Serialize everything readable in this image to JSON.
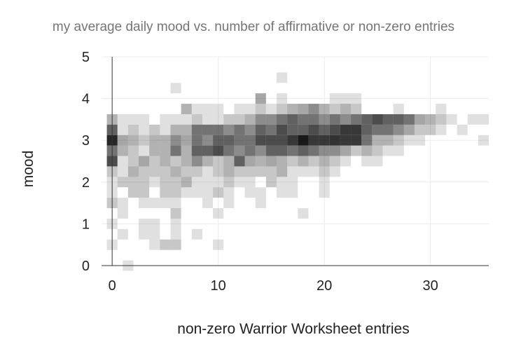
{
  "chart_data": {
    "type": "heatmap",
    "title": "my average daily mood vs. number of affirmative or non-zero entries",
    "xlabel": "non-zero Warrior Worksheet entries",
    "ylabel": "mood",
    "xlim": [
      -1,
      35.5
    ],
    "ylim": [
      0,
      5
    ],
    "x_ticks": [
      0,
      10,
      20,
      30
    ],
    "y_ticks": [
      0,
      1,
      2,
      3,
      4,
      5
    ],
    "bin_width": 1,
    "bin_height": 0.25,
    "grid": true,
    "legend": "none",
    "color": "#000000",
    "cells_columns": [
      "x",
      "y",
      "intensity"
    ],
    "cells": [
      [
        1.5,
        0,
        0.12
      ],
      [
        0,
        0.5,
        0.12
      ],
      [
        4,
        0.5,
        0.12
      ],
      [
        5,
        0.5,
        0.22
      ],
      [
        6,
        0.5,
        0.22
      ],
      [
        10,
        0.5,
        0.12
      ],
      [
        1,
        0.75,
        0.12
      ],
      [
        3,
        0.75,
        0.12
      ],
      [
        4,
        0.75,
        0.12
      ],
      [
        6,
        0.75,
        0.12
      ],
      [
        8,
        0.75,
        0.12
      ],
      [
        0,
        1,
        0.12
      ],
      [
        3,
        1,
        0.12
      ],
      [
        4,
        1,
        0.12
      ],
      [
        6,
        1,
        0.12
      ],
      [
        1,
        1.25,
        0.12
      ],
      [
        6,
        1.25,
        0.22
      ],
      [
        10,
        1.25,
        0.12
      ],
      [
        18,
        1.25,
        0.12
      ],
      [
        0,
        1.5,
        0.22
      ],
      [
        1,
        1.5,
        0.12
      ],
      [
        3,
        1.5,
        0.12
      ],
      [
        4,
        1.5,
        0.12
      ],
      [
        5,
        1.5,
        0.12
      ],
      [
        6,
        1.5,
        0.12
      ],
      [
        9,
        1.5,
        0.12
      ],
      [
        11,
        1.5,
        0.12
      ],
      [
        14,
        1.5,
        0.12
      ],
      [
        0,
        1.75,
        0.12
      ],
      [
        2,
        1.75,
        0.22
      ],
      [
        3,
        1.75,
        0.22
      ],
      [
        5,
        1.75,
        0.22
      ],
      [
        6,
        1.75,
        0.22
      ],
      [
        7,
        1.75,
        0.12
      ],
      [
        8,
        1.75,
        0.12
      ],
      [
        9,
        1.75,
        0.12
      ],
      [
        10,
        1.75,
        0.22
      ],
      [
        11,
        1.75,
        0.12
      ],
      [
        13,
        1.75,
        0.12
      ],
      [
        14,
        1.75,
        0.12
      ],
      [
        16,
        1.75,
        0.12
      ],
      [
        17,
        1.75,
        0.12
      ],
      [
        20,
        1.75,
        0.12
      ],
      [
        0,
        2,
        0.12
      ],
      [
        1,
        2,
        0.22
      ],
      [
        2,
        2,
        0.22
      ],
      [
        3,
        2,
        0.22
      ],
      [
        4,
        2,
        0.12
      ],
      [
        5,
        2,
        0.22
      ],
      [
        6,
        2,
        0.22
      ],
      [
        7,
        2,
        0.3
      ],
      [
        8,
        2,
        0.12
      ],
      [
        9,
        2,
        0.12
      ],
      [
        10,
        2,
        0.12
      ],
      [
        11,
        2,
        0.22
      ],
      [
        12,
        2,
        0.12
      ],
      [
        13,
        2,
        0.12
      ],
      [
        15,
        2,
        0.22
      ],
      [
        16,
        2,
        0.12
      ],
      [
        17,
        2,
        0.12
      ],
      [
        20,
        2,
        0.12
      ],
      [
        0,
        2.25,
        0.22
      ],
      [
        1,
        2.25,
        0.12
      ],
      [
        2,
        2.25,
        0.3
      ],
      [
        3,
        2.25,
        0.22
      ],
      [
        4,
        2.25,
        0.22
      ],
      [
        5,
        2.25,
        0.22
      ],
      [
        6,
        2.25,
        0.3
      ],
      [
        7,
        2.25,
        0.22
      ],
      [
        8,
        2.25,
        0.22
      ],
      [
        9,
        2.25,
        0.12
      ],
      [
        10,
        2.25,
        0.22
      ],
      [
        11,
        2.25,
        0.3
      ],
      [
        12,
        2.25,
        0.22
      ],
      [
        13,
        2.25,
        0.22
      ],
      [
        14,
        2.25,
        0.22
      ],
      [
        15,
        2.25,
        0.22
      ],
      [
        16,
        2.25,
        0.3
      ],
      [
        17,
        2.25,
        0.12
      ],
      [
        18,
        2.25,
        0.12
      ],
      [
        19,
        2.25,
        0.12
      ],
      [
        20,
        2.25,
        0.22
      ],
      [
        21,
        2.25,
        0.12
      ],
      [
        0,
        2.5,
        0.7
      ],
      [
        1,
        2.5,
        0.12
      ],
      [
        2,
        2.5,
        0.22
      ],
      [
        3,
        2.5,
        0.35
      ],
      [
        4,
        2.5,
        0.22
      ],
      [
        5,
        2.5,
        0.3
      ],
      [
        6,
        2.5,
        0.22
      ],
      [
        7,
        2.5,
        0.3
      ],
      [
        8,
        2.5,
        0.45
      ],
      [
        9,
        2.5,
        0.3
      ],
      [
        10,
        2.5,
        0.22
      ],
      [
        11,
        2.5,
        0.3
      ],
      [
        12,
        2.5,
        0.62
      ],
      [
        13,
        2.5,
        0.35
      ],
      [
        14,
        2.5,
        0.3
      ],
      [
        15,
        2.5,
        0.35
      ],
      [
        16,
        2.5,
        0.3
      ],
      [
        17,
        2.5,
        0.22
      ],
      [
        18,
        2.5,
        0.3
      ],
      [
        19,
        2.5,
        0.22
      ],
      [
        20,
        2.5,
        0.3
      ],
      [
        21,
        2.5,
        0.22
      ],
      [
        22,
        2.5,
        0.12
      ],
      [
        24,
        2.5,
        0.12
      ],
      [
        25,
        2.5,
        0.12
      ],
      [
        0,
        2.75,
        0.55
      ],
      [
        1,
        2.75,
        0.3
      ],
      [
        2,
        2.75,
        0.22
      ],
      [
        3,
        2.75,
        0.12
      ],
      [
        4,
        2.75,
        0.3
      ],
      [
        5,
        2.75,
        0.3
      ],
      [
        6,
        2.75,
        0.55
      ],
      [
        7,
        2.75,
        0.3
      ],
      [
        8,
        2.75,
        0.62
      ],
      [
        9,
        2.75,
        0.62
      ],
      [
        10,
        2.75,
        0.7
      ],
      [
        11,
        2.75,
        0.55
      ],
      [
        12,
        2.75,
        0.45
      ],
      [
        13,
        2.75,
        0.55
      ],
      [
        14,
        2.75,
        0.45
      ],
      [
        15,
        2.75,
        0.62
      ],
      [
        16,
        2.75,
        0.62
      ],
      [
        17,
        2.75,
        0.55
      ],
      [
        18,
        2.75,
        0.62
      ],
      [
        19,
        2.75,
        0.55
      ],
      [
        20,
        2.75,
        0.45
      ],
      [
        21,
        2.75,
        0.45
      ],
      [
        22,
        2.75,
        0.35
      ],
      [
        23,
        2.75,
        0.22
      ],
      [
        24,
        2.75,
        0.3
      ],
      [
        25,
        2.75,
        0.22
      ],
      [
        26,
        2.75,
        0.12
      ],
      [
        27,
        2.75,
        0.12
      ],
      [
        0,
        3,
        0.85
      ],
      [
        1,
        3,
        0.35
      ],
      [
        2,
        3,
        0.3
      ],
      [
        3,
        3,
        0.22
      ],
      [
        4,
        3,
        0.3
      ],
      [
        5,
        3,
        0.3
      ],
      [
        6,
        3,
        0.45
      ],
      [
        7,
        3,
        0.35
      ],
      [
        8,
        3,
        0.55
      ],
      [
        9,
        3,
        0.45
      ],
      [
        10,
        3,
        0.62
      ],
      [
        11,
        3,
        0.62
      ],
      [
        12,
        3,
        0.55
      ],
      [
        13,
        3,
        0.55
      ],
      [
        14,
        3,
        0.7
      ],
      [
        15,
        3,
        0.7
      ],
      [
        16,
        3,
        0.7
      ],
      [
        17,
        3,
        0.78
      ],
      [
        18,
        3,
        0.9
      ],
      [
        19,
        3,
        0.78
      ],
      [
        20,
        3,
        0.78
      ],
      [
        21,
        3,
        0.8
      ],
      [
        22,
        3,
        0.78
      ],
      [
        23,
        3,
        0.78
      ],
      [
        24,
        3,
        0.55
      ],
      [
        25,
        3,
        0.3
      ],
      [
        26,
        3,
        0.3
      ],
      [
        27,
        3,
        0.22
      ],
      [
        28,
        3,
        0.12
      ],
      [
        29,
        3,
        0.12
      ],
      [
        35,
        3,
        0.12
      ],
      [
        0,
        3.25,
        0.62
      ],
      [
        1,
        3.25,
        0.12
      ],
      [
        2,
        3.25,
        0.22
      ],
      [
        3,
        3.25,
        0.12
      ],
      [
        4,
        3.25,
        0.22
      ],
      [
        5,
        3.25,
        0.12
      ],
      [
        6,
        3.25,
        0.3
      ],
      [
        7,
        3.25,
        0.3
      ],
      [
        8,
        3.25,
        0.55
      ],
      [
        9,
        3.25,
        0.55
      ],
      [
        10,
        3.25,
        0.55
      ],
      [
        11,
        3.25,
        0.45
      ],
      [
        12,
        3.25,
        0.55
      ],
      [
        13,
        3.25,
        0.45
      ],
      [
        14,
        3.25,
        0.62
      ],
      [
        15,
        3.25,
        0.55
      ],
      [
        16,
        3.25,
        0.7
      ],
      [
        17,
        3.25,
        0.62
      ],
      [
        18,
        3.25,
        0.62
      ],
      [
        19,
        3.25,
        0.7
      ],
      [
        20,
        3.25,
        0.62
      ],
      [
        21,
        3.25,
        0.7
      ],
      [
        22,
        3.25,
        0.78
      ],
      [
        23,
        3.25,
        0.78
      ],
      [
        24,
        3.25,
        0.62
      ],
      [
        25,
        3.25,
        0.55
      ],
      [
        26,
        3.25,
        0.55
      ],
      [
        27,
        3.25,
        0.45
      ],
      [
        28,
        3.25,
        0.35
      ],
      [
        29,
        3.25,
        0.22
      ],
      [
        30,
        3.25,
        0.22
      ],
      [
        31,
        3.25,
        0.12
      ],
      [
        33,
        3.25,
        0.12
      ],
      [
        0,
        3.5,
        0.3
      ],
      [
        1,
        3.5,
        0.12
      ],
      [
        2,
        3.5,
        0.12
      ],
      [
        3,
        3.5,
        0.12
      ],
      [
        5,
        3.5,
        0.12
      ],
      [
        6,
        3.5,
        0.12
      ],
      [
        7,
        3.5,
        0.12
      ],
      [
        8,
        3.5,
        0.22
      ],
      [
        9,
        3.5,
        0.12
      ],
      [
        10,
        3.5,
        0.12
      ],
      [
        11,
        3.5,
        0.22
      ],
      [
        12,
        3.5,
        0.22
      ],
      [
        13,
        3.5,
        0.3
      ],
      [
        14,
        3.5,
        0.45
      ],
      [
        15,
        3.5,
        0.45
      ],
      [
        16,
        3.5,
        0.55
      ],
      [
        17,
        3.5,
        0.62
      ],
      [
        18,
        3.5,
        0.55
      ],
      [
        19,
        3.5,
        0.55
      ],
      [
        20,
        3.5,
        0.45
      ],
      [
        21,
        3.5,
        0.55
      ],
      [
        22,
        3.5,
        0.45
      ],
      [
        23,
        3.5,
        0.55
      ],
      [
        24,
        3.5,
        0.62
      ],
      [
        25,
        3.5,
        0.7
      ],
      [
        26,
        3.5,
        0.62
      ],
      [
        27,
        3.5,
        0.62
      ],
      [
        28,
        3.5,
        0.55
      ],
      [
        29,
        3.5,
        0.35
      ],
      [
        30,
        3.5,
        0.3
      ],
      [
        31,
        3.5,
        0.22
      ],
      [
        32,
        3.5,
        0.12
      ],
      [
        34,
        3.5,
        0.12
      ],
      [
        35,
        3.5,
        0.12
      ],
      [
        7,
        3.75,
        0.3
      ],
      [
        8,
        3.75,
        0.12
      ],
      [
        9,
        3.75,
        0.12
      ],
      [
        10,
        3.75,
        0.12
      ],
      [
        12,
        3.75,
        0.12
      ],
      [
        13,
        3.75,
        0.12
      ],
      [
        14,
        3.75,
        0.22
      ],
      [
        15,
        3.75,
        0.12
      ],
      [
        16,
        3.75,
        0.22
      ],
      [
        17,
        3.75,
        0.3
      ],
      [
        18,
        3.75,
        0.35
      ],
      [
        19,
        3.75,
        0.45
      ],
      [
        20,
        3.75,
        0.3
      ],
      [
        21,
        3.75,
        0.22
      ],
      [
        22,
        3.75,
        0.3
      ],
      [
        23,
        3.75,
        0.22
      ],
      [
        27,
        3.75,
        0.12
      ],
      [
        31,
        3.75,
        0.12
      ],
      [
        14,
        4,
        0.35
      ],
      [
        16,
        4,
        0.12
      ],
      [
        21,
        4,
        0.12
      ],
      [
        22,
        4,
        0.12
      ],
      [
        23,
        4,
        0.12
      ],
      [
        6,
        4.25,
        0.12
      ],
      [
        16,
        4.5,
        0.12
      ]
    ]
  }
}
